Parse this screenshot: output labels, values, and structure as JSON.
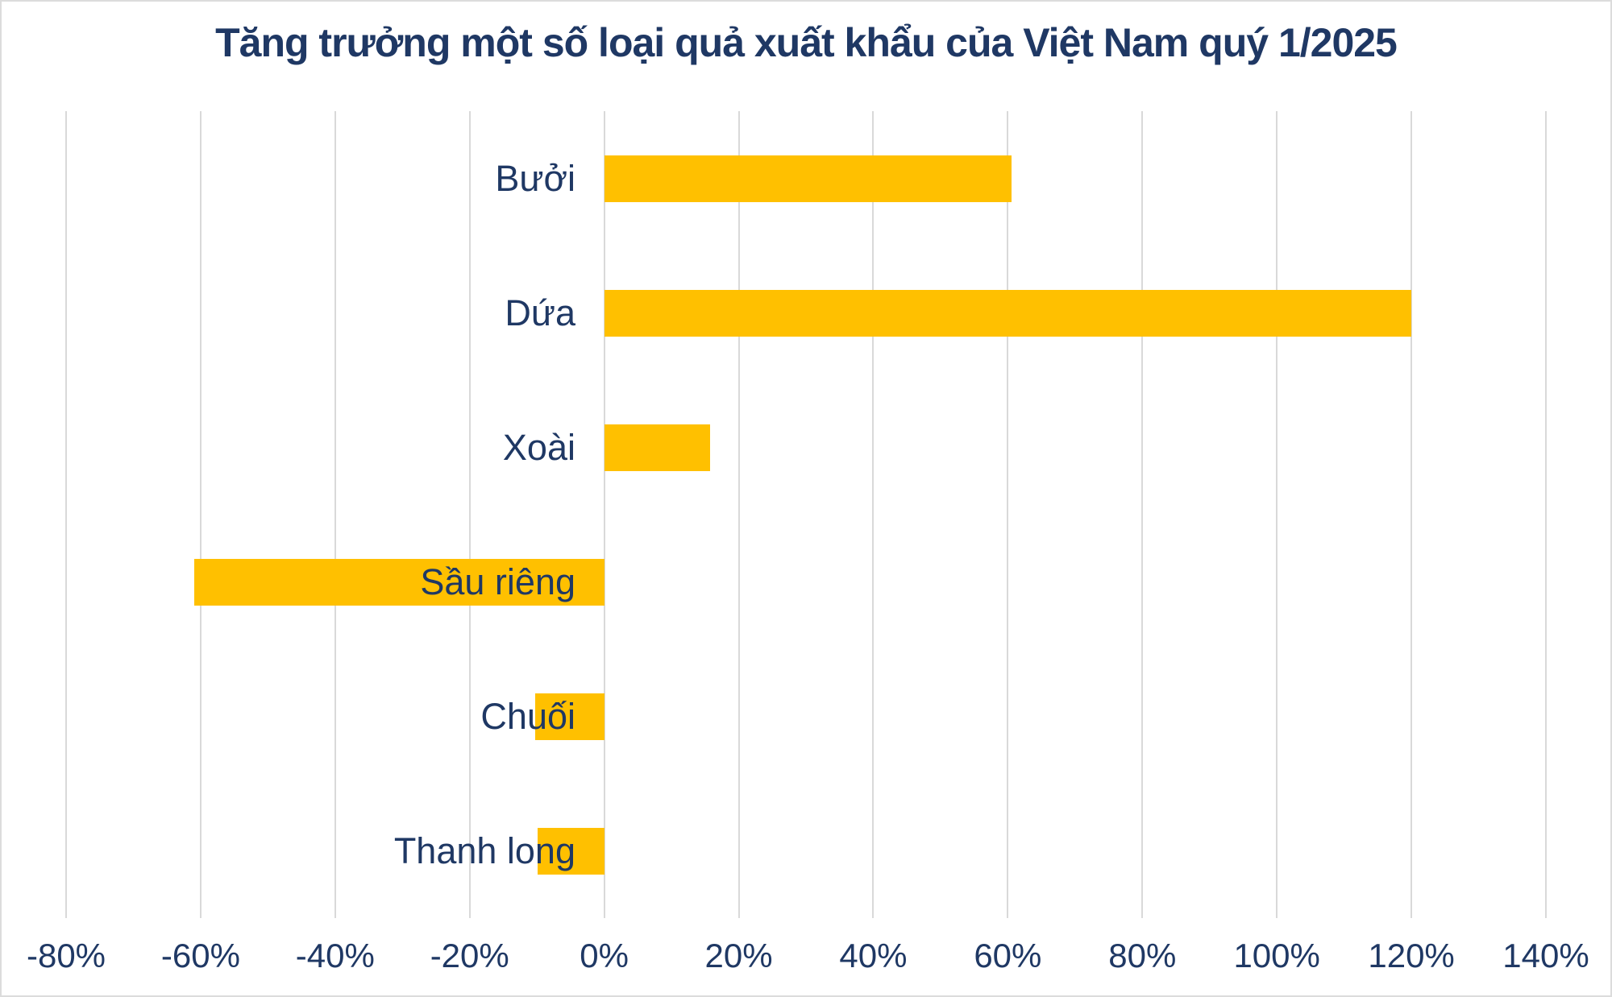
{
  "window": {
    "background": "#ffffff",
    "border_color": "#dcdcdc"
  },
  "chart_data": {
    "type": "bar",
    "orientation": "horizontal",
    "title": "Tăng trưởng một số loại quả xuất khẩu của Việt Nam quý 1/2025",
    "categories": [
      "Bưởi",
      "Dứa",
      "Xoài",
      "Sầu riêng",
      "Chuối",
      "Thanh long"
    ],
    "values": [
      60.5,
      120,
      15.8,
      -61,
      -10.3,
      -9.9
    ],
    "value_unit": "%",
    "xlabel": "",
    "ylabel": "",
    "xlim": [
      -80,
      140
    ],
    "x_tick_step": 20,
    "x_tick_labels": [
      "-80%",
      "-60%",
      "-40%",
      "-20%",
      "0%",
      "20%",
      "40%",
      "60%",
      "80%",
      "100%",
      "120%",
      "140%"
    ],
    "grid": "vertical-only",
    "legend": "none",
    "data_labels": "none",
    "bar_color": "#FFC000",
    "text_color": "#1F3864",
    "gridline_color": "#D9D9D9"
  }
}
